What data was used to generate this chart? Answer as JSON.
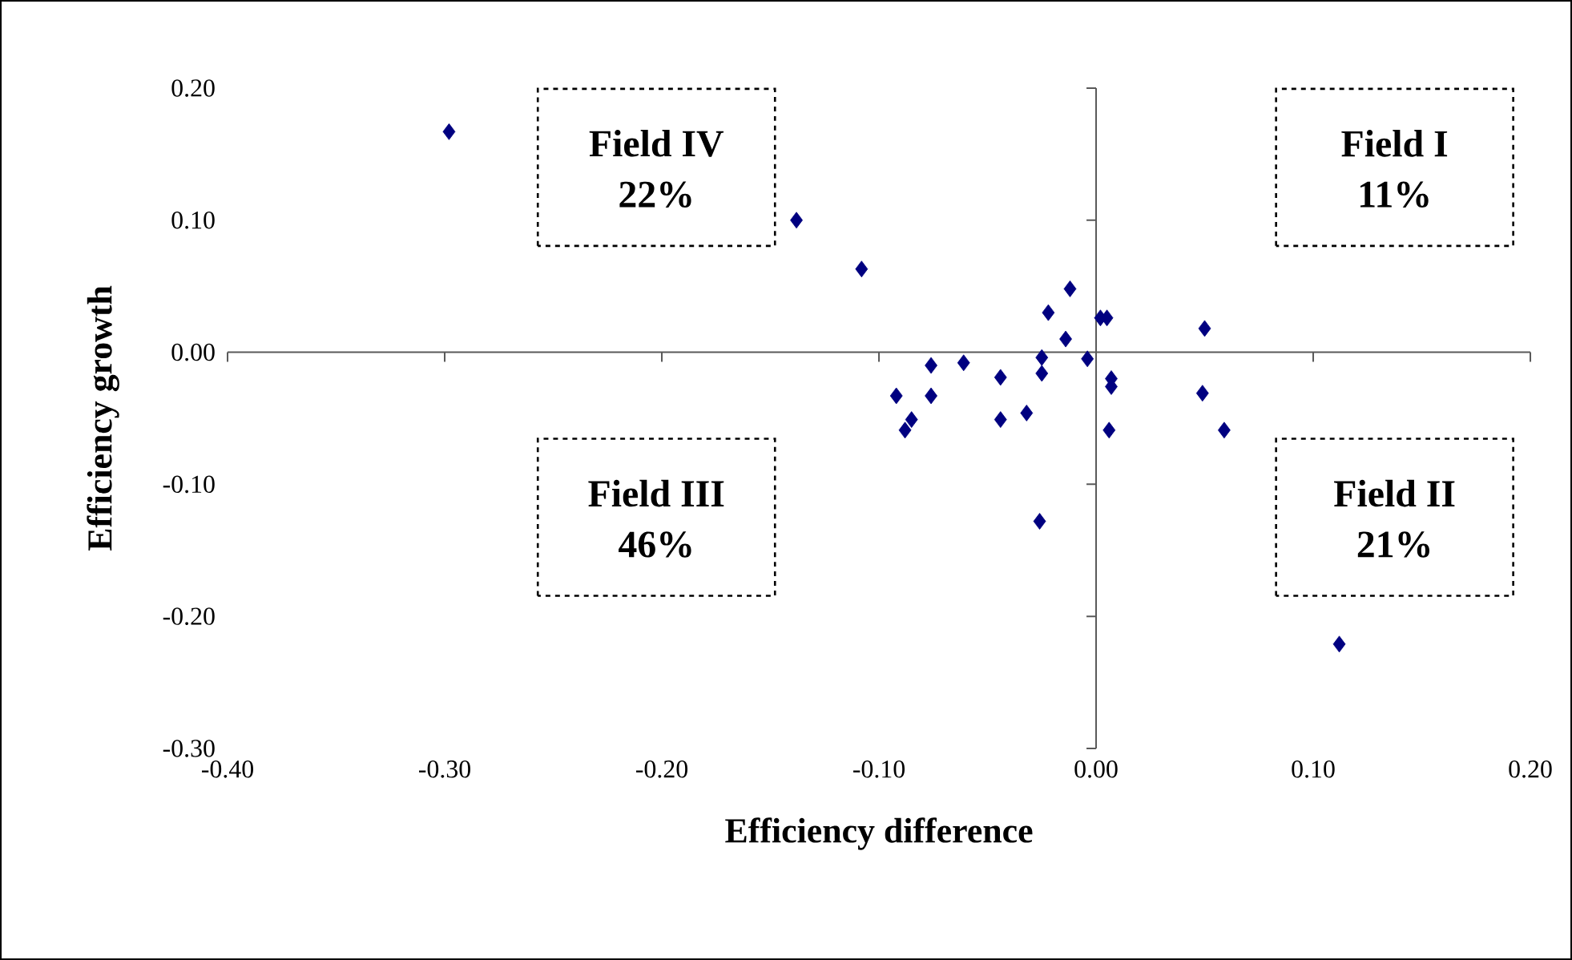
{
  "chart_data": {
    "type": "scatter",
    "xlabel": "Efficiency difference",
    "ylabel": "Efficiency growth",
    "annotations": [
      "Field IV",
      "22%",
      "Field I",
      "11%",
      "Field III",
      "46%",
      "Field II",
      "21%"
    ],
    "xlim": [
      -0.4,
      0.2
    ],
    "ylim": [
      -0.3,
      0.2
    ],
    "xticks": [
      {
        "value": -0.4,
        "label": "-0.40"
      },
      {
        "value": -0.3,
        "label": "-0.30"
      },
      {
        "value": -0.2,
        "label": "-0.20"
      },
      {
        "value": -0.1,
        "label": "-0.10"
      },
      {
        "value": 0,
        "label": "0.00"
      },
      {
        "value": 0.1,
        "label": "0.10"
      },
      {
        "value": 0.2,
        "label": "0.20"
      }
    ],
    "yticks": [
      {
        "value": -0.3,
        "label": "-0.30"
      },
      {
        "value": -0.2,
        "label": "-0.20"
      },
      {
        "value": -0.1,
        "label": "-0.10"
      },
      {
        "value": 0,
        "label": "0.00"
      },
      {
        "value": 0.1,
        "label": "0.10"
      },
      {
        "value": 0.2,
        "label": "0.20"
      }
    ],
    "marker": "diamond",
    "series": [
      {
        "color": "#000080",
        "x": [
          -0.298,
          -0.138,
          -0.108,
          -0.012,
          -0.022,
          0.002,
          0.005,
          0.05,
          -0.014,
          -0.076,
          -0.061,
          -0.044,
          -0.025,
          -0.025,
          -0.004,
          0.007,
          0.007,
          -0.092,
          -0.076,
          0.049,
          -0.085,
          -0.088,
          -0.044,
          -0.032,
          0.006,
          0.059,
          -0.026,
          0.112
        ],
        "values": [
          0.167,
          0.1,
          0.063,
          0.048,
          0.03,
          0.026,
          0.026,
          0.018,
          0.01,
          -0.01,
          -0.008,
          -0.019,
          -0.004,
          -0.016,
          -0.005,
          -0.02,
          -0.026,
          -0.033,
          -0.033,
          -0.031,
          -0.051,
          -0.059,
          -0.051,
          -0.046,
          -0.059,
          -0.059,
          -0.128,
          -0.221
        ]
      }
    ]
  }
}
